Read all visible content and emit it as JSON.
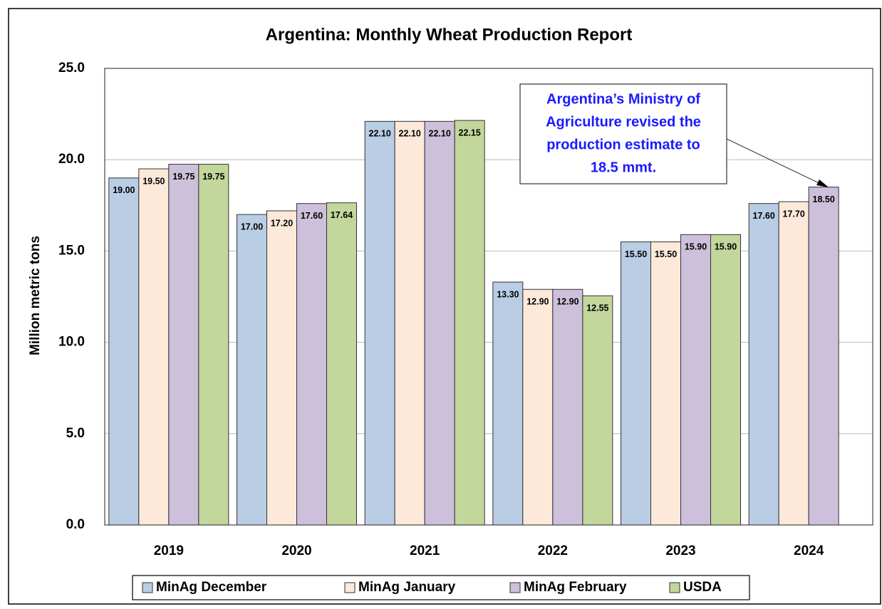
{
  "chart_data": {
    "type": "bar",
    "title": "Argentina: Monthly Wheat Production Report",
    "y_label": "Million metric tons",
    "categories": [
      "2019",
      "2020",
      "2021",
      "2022",
      "2023",
      "2024"
    ],
    "series": [
      {
        "name": "MinAg December",
        "color": "#b9cde5",
        "values": [
          19.0,
          17.0,
          22.1,
          13.3,
          15.5,
          17.6
        ],
        "value_labels": [
          "19.00",
          "17.00",
          "22.10",
          "13.30",
          "15.50",
          "17.60"
        ]
      },
      {
        "name": "MinAg January",
        "color": "#fde9d9",
        "values": [
          19.5,
          17.2,
          22.1,
          12.9,
          15.5,
          17.7
        ],
        "value_labels": [
          "19.50",
          "17.20",
          "22.10",
          "12.90",
          "15.50",
          "17.70"
        ]
      },
      {
        "name": "MinAg February",
        "color": "#ccc0da",
        "values": [
          19.75,
          17.6,
          22.1,
          12.9,
          15.9,
          18.5
        ],
        "value_labels": [
          "19.75",
          "17.60",
          "22.10",
          "12.90",
          "15.90",
          "18.50"
        ]
      },
      {
        "name": "USDA",
        "color": "#c3d69b",
        "values": [
          19.75,
          17.64,
          22.15,
          12.55,
          15.9,
          null
        ],
        "value_labels": [
          "19.75",
          "17.64",
          "22.15",
          "12.55",
          "15.90",
          null
        ]
      }
    ],
    "ylim": [
      0,
      25
    ],
    "yticks": [
      {
        "value": 0,
        "label": "0.0"
      },
      {
        "value": 5,
        "label": "5.0"
      },
      {
        "value": 10,
        "label": "10.0"
      },
      {
        "value": 15,
        "label": "15.0"
      },
      {
        "value": 20,
        "label": "20.0"
      },
      {
        "value": 25,
        "label": "25.0"
      }
    ],
    "grid": true,
    "legend": "bottom",
    "annotation": [
      "Argentina’s Ministry of",
      "Agriculture revised the",
      "production estimate to",
      "18.5 mmt."
    ]
  }
}
